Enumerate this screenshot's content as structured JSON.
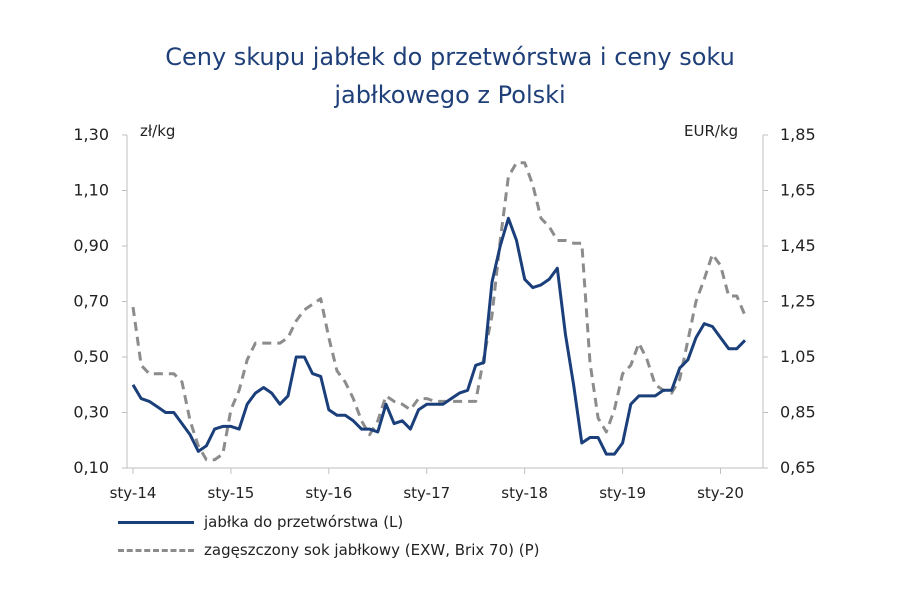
{
  "chart_data": {
    "type": "line",
    "title_lines": [
      "Ceny skupu jabłek do przetwórstwa i ceny soku",
      "jabłkowego z Polski"
    ],
    "y_left_unit": "zł/kg",
    "y_right_unit": "EUR/kg",
    "ylim_left": [
      0.1,
      1.3
    ],
    "ylim_right": [
      0.65,
      1.85
    ],
    "y_left_ticks": [
      "1,30",
      "1,10",
      "0,90",
      "0,70",
      "0,50",
      "0,30",
      "0,10"
    ],
    "y_right_ticks": [
      "1,85",
      "1,65",
      "1,45",
      "1,25",
      "1,05",
      "0,85",
      "0,65"
    ],
    "x_tick_labels": [
      "sty-14",
      "sty-15",
      "sty-16",
      "sty-17",
      "sty-18",
      "sty-19",
      "sty-20"
    ],
    "x_tick_months": [
      0,
      12,
      24,
      36,
      48,
      60,
      72
    ],
    "x_range_months": [
      0,
      75
    ],
    "grid": false,
    "legend_position": "bottom",
    "series": [
      {
        "name": "jabłka do przetwórstwa (L)",
        "axis": "left",
        "color": "#1a3f7a",
        "style": "solid",
        "points": [
          [
            0,
            0.4
          ],
          [
            1,
            0.35
          ],
          [
            2,
            0.34
          ],
          [
            3,
            0.32
          ],
          [
            4,
            0.3
          ],
          [
            5,
            0.3
          ],
          [
            6,
            0.26
          ],
          [
            7,
            0.22
          ],
          [
            8,
            0.16
          ],
          [
            9,
            0.18
          ],
          [
            10,
            0.24
          ],
          [
            11,
            0.25
          ],
          [
            12,
            0.25
          ],
          [
            13,
            0.24
          ],
          [
            14,
            0.33
          ],
          [
            15,
            0.37
          ],
          [
            16,
            0.39
          ],
          [
            17,
            0.37
          ],
          [
            18,
            0.33
          ],
          [
            19,
            0.36
          ],
          [
            20,
            0.5
          ],
          [
            21,
            0.5
          ],
          [
            22,
            0.44
          ],
          [
            23,
            0.43
          ],
          [
            24,
            0.31
          ],
          [
            25,
            0.29
          ],
          [
            26,
            0.29
          ],
          [
            27,
            0.27
          ],
          [
            28,
            0.24
          ],
          [
            29,
            0.24
          ],
          [
            30,
            0.23
          ],
          [
            31,
            0.33
          ],
          [
            32,
            0.26
          ],
          [
            33,
            0.27
          ],
          [
            34,
            0.24
          ],
          [
            35,
            0.31
          ],
          [
            36,
            0.33
          ],
          [
            37,
            0.33
          ],
          [
            38,
            0.33
          ],
          [
            39,
            0.35
          ],
          [
            40,
            0.37
          ],
          [
            41,
            0.38
          ],
          [
            42,
            0.47
          ],
          [
            43,
            0.48
          ],
          [
            44,
            0.77
          ],
          [
            45,
            0.9
          ],
          [
            46,
            1.0
          ],
          [
            47,
            0.92
          ],
          [
            48,
            0.78
          ],
          [
            49,
            0.75
          ],
          [
            50,
            0.76
          ],
          [
            51,
            0.78
          ],
          [
            52,
            0.82
          ],
          [
            53,
            0.58
          ],
          [
            54,
            0.4
          ],
          [
            55,
            0.19
          ],
          [
            56,
            0.21
          ],
          [
            57,
            0.21
          ],
          [
            58,
            0.15
          ],
          [
            59,
            0.15
          ],
          [
            60,
            0.19
          ],
          [
            61,
            0.33
          ],
          [
            62,
            0.36
          ],
          [
            63,
            0.36
          ],
          [
            64,
            0.36
          ],
          [
            65,
            0.38
          ],
          [
            66,
            0.38
          ],
          [
            67,
            0.46
          ],
          [
            68,
            0.49
          ],
          [
            69,
            0.57
          ],
          [
            70,
            0.62
          ],
          [
            71,
            0.61
          ],
          [
            72,
            0.57
          ],
          [
            73,
            0.53
          ],
          [
            74,
            0.53
          ],
          [
            75,
            0.56
          ]
        ]
      },
      {
        "name": "zagęszczony sok jabłkowy (EXW, Brix 70) (P)",
        "axis": "right",
        "color": "#8c8c8c",
        "style": "dashed",
        "points": [
          [
            0,
            1.23
          ],
          [
            1,
            1.02
          ],
          [
            2,
            0.99
          ],
          [
            3,
            0.99
          ],
          [
            4,
            0.99
          ],
          [
            5,
            0.99
          ],
          [
            6,
            0.96
          ],
          [
            7,
            0.82
          ],
          [
            8,
            0.73
          ],
          [
            9,
            0.68
          ],
          [
            10,
            0.68
          ],
          [
            11,
            0.7
          ],
          [
            12,
            0.86
          ],
          [
            13,
            0.93
          ],
          [
            14,
            1.04
          ],
          [
            15,
            1.1
          ],
          [
            16,
            1.1
          ],
          [
            17,
            1.1
          ],
          [
            18,
            1.1
          ],
          [
            19,
            1.12
          ],
          [
            20,
            1.18
          ],
          [
            21,
            1.22
          ],
          [
            22,
            1.24
          ],
          [
            23,
            1.26
          ],
          [
            24,
            1.12
          ],
          [
            25,
            1.0
          ],
          [
            26,
            0.96
          ],
          [
            27,
            0.9
          ],
          [
            28,
            0.82
          ],
          [
            29,
            0.77
          ],
          [
            30,
            0.82
          ],
          [
            31,
            0.91
          ],
          [
            32,
            0.89
          ],
          [
            33,
            0.88
          ],
          [
            34,
            0.86
          ],
          [
            35,
            0.9
          ],
          [
            36,
            0.9
          ],
          [
            37,
            0.89
          ],
          [
            38,
            0.89
          ],
          [
            39,
            0.89
          ],
          [
            40,
            0.89
          ],
          [
            41,
            0.89
          ],
          [
            42,
            0.89
          ],
          [
            43,
            1.05
          ],
          [
            44,
            1.2
          ],
          [
            45,
            1.47
          ],
          [
            46,
            1.7
          ],
          [
            47,
            1.75
          ],
          [
            48,
            1.75
          ],
          [
            49,
            1.67
          ],
          [
            50,
            1.55
          ],
          [
            51,
            1.52
          ],
          [
            52,
            1.47
          ],
          [
            53,
            1.47
          ],
          [
            54,
            1.46
          ],
          [
            55,
            1.46
          ],
          [
            56,
            1.03
          ],
          [
            57,
            0.83
          ],
          [
            58,
            0.78
          ],
          [
            59,
            0.86
          ],
          [
            60,
            0.99
          ],
          [
            61,
            1.02
          ],
          [
            62,
            1.1
          ],
          [
            63,
            1.04
          ],
          [
            64,
            0.95
          ],
          [
            65,
            0.93
          ],
          [
            66,
            0.92
          ],
          [
            67,
            0.97
          ],
          [
            68,
            1.11
          ],
          [
            69,
            1.25
          ],
          [
            70,
            1.33
          ],
          [
            71,
            1.42
          ],
          [
            72,
            1.38
          ],
          [
            73,
            1.27
          ],
          [
            74,
            1.27
          ],
          [
            75,
            1.2
          ]
        ]
      }
    ]
  }
}
